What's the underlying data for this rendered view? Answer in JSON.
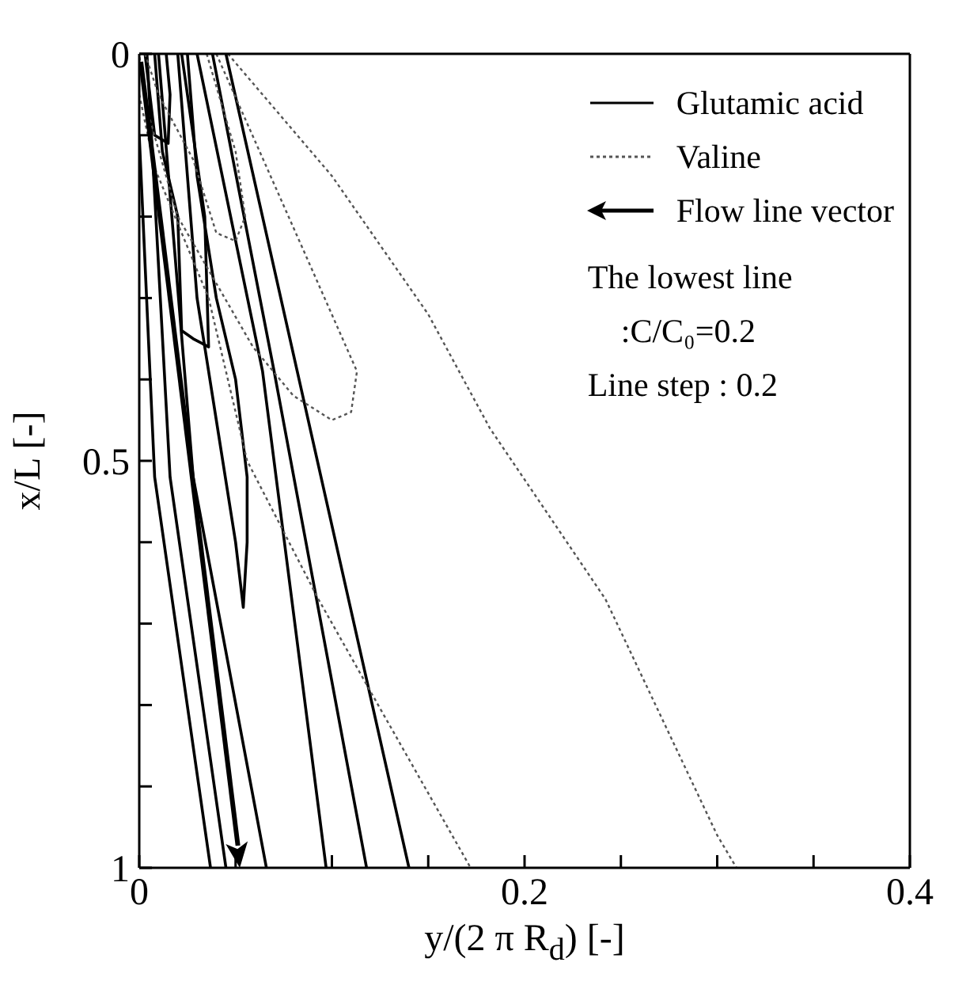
{
  "chart_data": {
    "type": "line",
    "xlabel": "y/(2 π R$_{d}$) [-]",
    "ylabel": "x/L [-]",
    "xlim": [
      0,
      0.4
    ],
    "ylim": [
      1,
      0
    ],
    "xticks": [
      0,
      {
        "value": 0.05,
        "label": null
      },
      {
        "value": 0.1,
        "label": null
      },
      {
        "value": 0.15,
        "label": null
      },
      0.2,
      {
        "value": 0.25,
        "label": null
      },
      {
        "value": 0.3,
        "label": null
      },
      {
        "value": 0.35,
        "label": null
      },
      0.4
    ],
    "yticks": [
      0,
      {
        "value": 0.1,
        "label": null
      },
      {
        "value": 0.2,
        "label": null
      },
      {
        "value": 0.3,
        "label": null
      },
      {
        "value": 0.4,
        "label": null
      },
      0.5,
      {
        "value": 0.6,
        "label": null
      },
      {
        "value": 0.7,
        "label": null
      },
      {
        "value": 0.8,
        "label": null
      },
      {
        "value": 0.9,
        "label": null
      },
      1
    ],
    "legend": "top right",
    "annotations": [
      "Flow line vector",
      "The lowest line\n    :C/C₀=0.2",
      "Line step : 0.2"
    ],
    "series": [
      {
        "name": "Glutamic acid",
        "color": "#000000",
        "line_style": "solid",
        "x": [
          0,
          0.008,
          0.037
        ],
        "values": [
          0.1,
          0.52,
          1
        ]
      },
      {
        "color": "#000000",
        "line_style": "solid",
        "x": [
          0.004,
          0.016,
          0.045
        ],
        "values": [
          0,
          0.52,
          1
        ]
      },
      {
        "color": "#000000",
        "line_style": "solid",
        "x": [
          0.01,
          0.028,
          0.066
        ],
        "values": [
          0,
          0.52,
          1
        ]
      },
      {
        "color": "#000000",
        "line_style": "solid",
        "x": [
          0.03,
          0.064,
          0.097
        ],
        "values": [
          0,
          0.39,
          1
        ]
      },
      {
        "color": "#000000",
        "line_style": "solid",
        "x": [
          0.038,
          0.07,
          0.118
        ],
        "values": [
          0,
          0.39,
          1
        ]
      },
      {
        "color": "#000000",
        "line_style": "solid",
        "x": [
          0.045,
          0.082,
          0.14
        ],
        "values": [
          0,
          0.39,
          1
        ]
      },
      {
        "color": "#000000",
        "line_style": "solid",
        "x": [
          0.02,
          0.03,
          0.04,
          0.05,
          0.054,
          0.056,
          0.056,
          0.05,
          0.04,
          0.03,
          0.025
        ],
        "values": [
          0,
          0.3,
          0.45,
          0.6,
          0.68,
          0.6,
          0.52,
          0.4,
          0.3,
          0.15,
          0
        ]
      },
      {
        "color": "#000000",
        "line_style": "solid",
        "x": [
          0.008,
          0.012,
          0.02,
          0.022,
          0.028,
          0.036,
          0.034,
          0.028,
          0.022
        ],
        "values": [
          0,
          0.12,
          0.2,
          0.34,
          0.35,
          0.36,
          0.2,
          0.1,
          0
        ]
      },
      {
        "color": "#000000",
        "line_style": "solid",
        "x": [
          0.003,
          0.008,
          0.015,
          0.016,
          0.014
        ],
        "values": [
          0,
          0.1,
          0.11,
          0.05,
          0
        ]
      },
      {
        "name": "Valine",
        "color": "#555555",
        "line_style": "dotted",
        "x": [
          0.046,
          0.1,
          0.15,
          0.182,
          0.242,
          0.3,
          0.31
        ],
        "values": [
          0,
          0.15,
          0.32,
          0.46,
          0.67,
          0.96,
          1
        ]
      },
      {
        "color": "#555555",
        "line_style": "dotted",
        "x": [
          0.04,
          0.085,
          0.113,
          0.11,
          0.1,
          0.08,
          0.059,
          0.02,
          0.003,
          0
        ],
        "values": [
          0,
          0.24,
          0.39,
          0.44,
          0.45,
          0.42,
          0.36,
          0.2,
          0.06,
          0
        ]
      },
      {
        "color": "#555555",
        "line_style": "dotted",
        "x": [
          0.035,
          0.05,
          0.055,
          0.05,
          0.04,
          0.028,
          0.01,
          0.003
        ],
        "values": [
          0,
          0.12,
          0.2,
          0.23,
          0.22,
          0.13,
          0.05,
          0
        ]
      },
      {
        "color": "#555555",
        "line_style": "dotted",
        "x": [
          0,
          0.008,
          0.036,
          0.056,
          0.093,
          0.124,
          0.172
        ],
        "values": [
          0.05,
          0.14,
          0.3,
          0.5,
          0.67,
          0.8,
          1
        ]
      }
    ]
  }
}
